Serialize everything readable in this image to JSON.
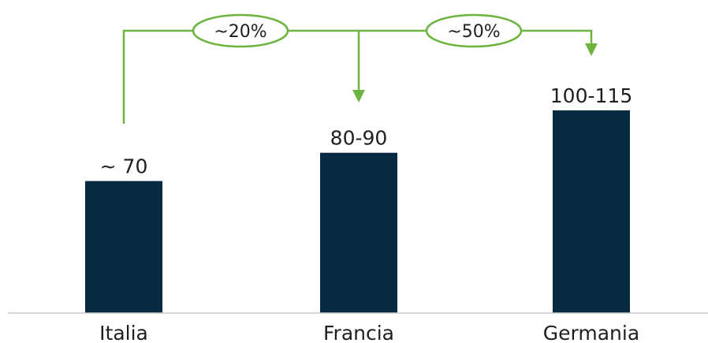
{
  "chart_data": {
    "type": "bar",
    "categories": [
      "Italia",
      "Francia",
      "Germania"
    ],
    "values": [
      70,
      85,
      107.5
    ],
    "value_labels": [
      "~ 70",
      "80-90",
      "100-115"
    ],
    "ylim": [
      0,
      115
    ],
    "grid": false,
    "title": "",
    "xlabel": "",
    "ylabel": "",
    "colors": {
      "bar": "#062a42",
      "annotation": "#6cb33f",
      "axis": "#c8c8c8"
    },
    "annotations": [
      {
        "label": "~20%",
        "from": "Italia",
        "to": "Francia"
      },
      {
        "label": "~50%",
        "from": "Italia",
        "to": "Germania"
      }
    ]
  }
}
